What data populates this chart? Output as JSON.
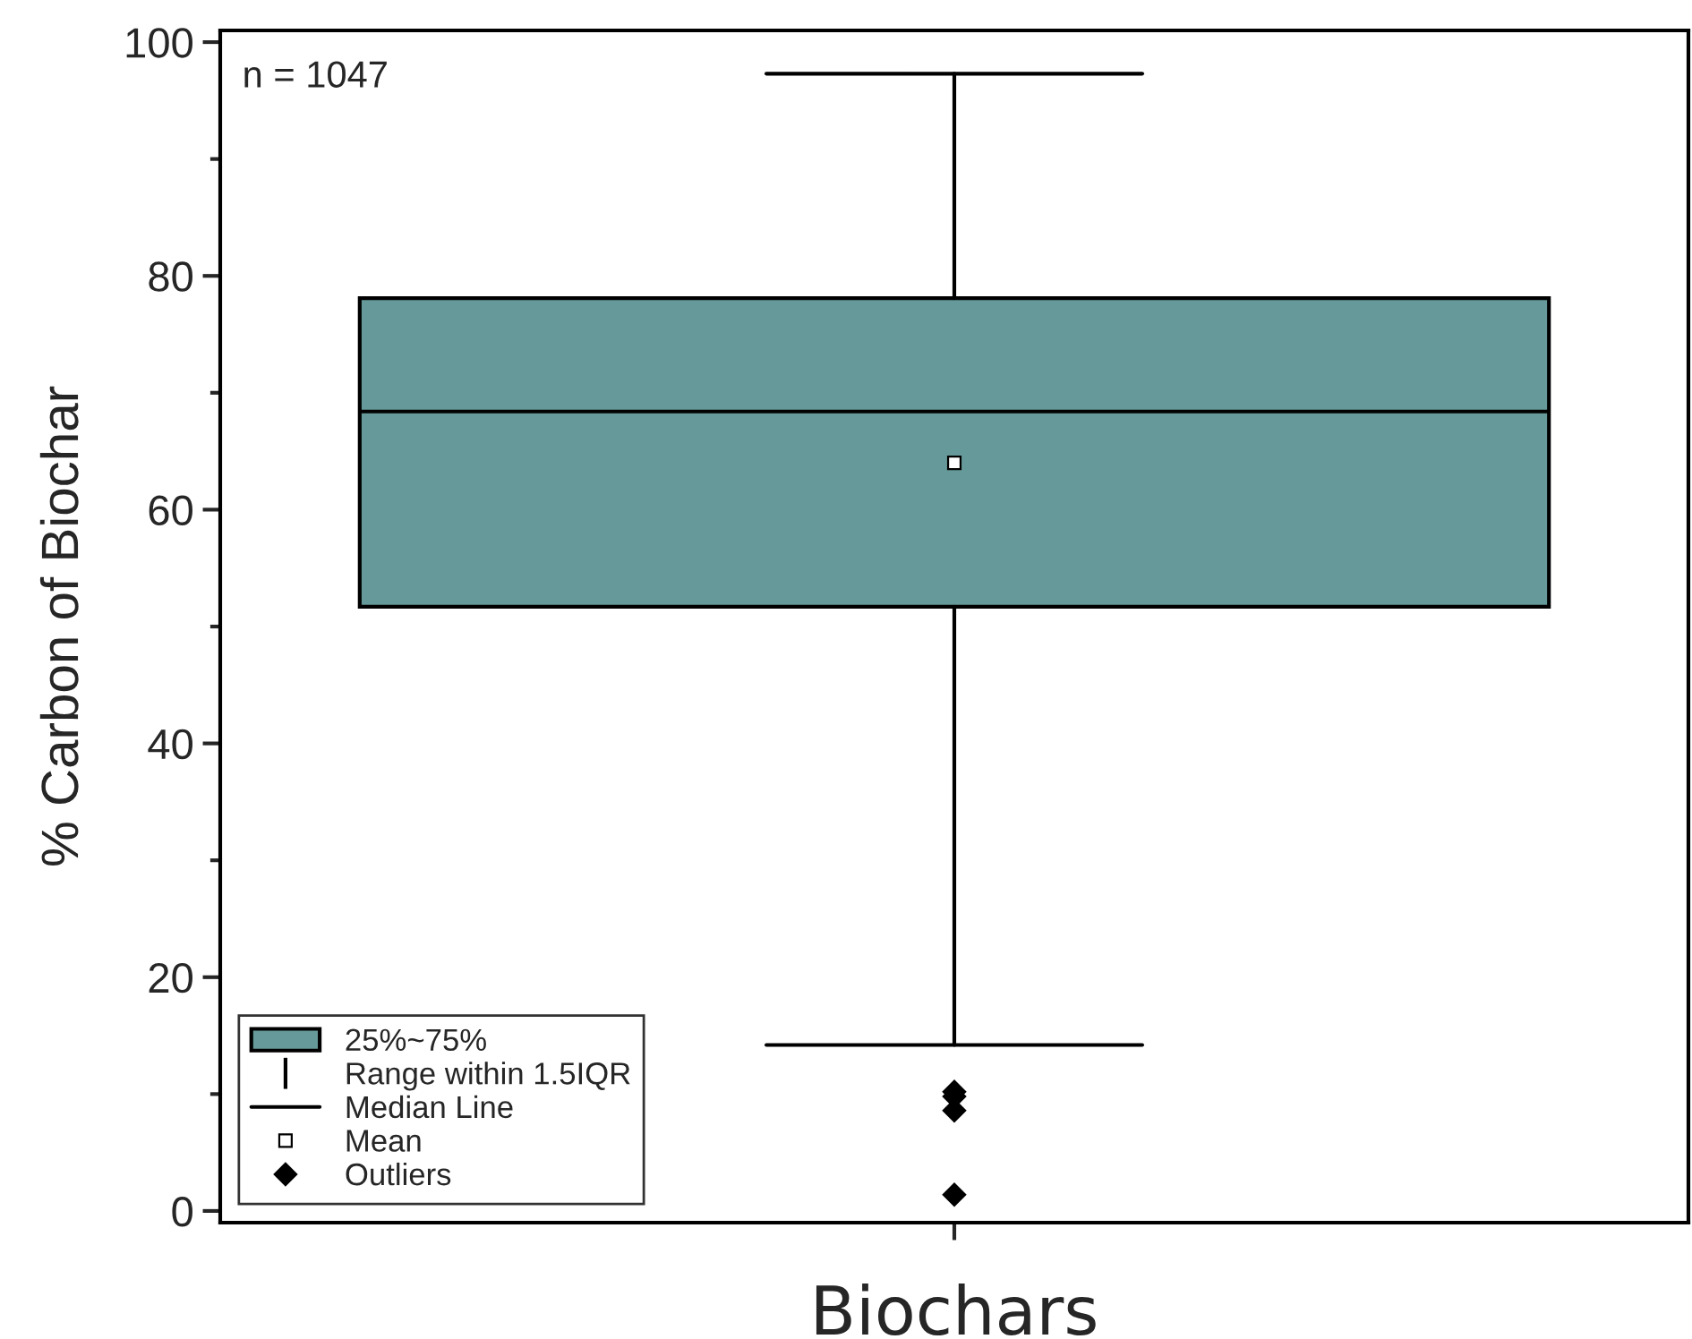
{
  "chart_data": {
    "type": "box",
    "xlabel": "Biochars",
    "ylabel": "% Carbon of Biochar",
    "categories": [
      null
    ],
    "color": "#669999",
    "boxes": [
      {
        "low": 14.2,
        "q1": 51.7,
        "median": 68.4,
        "q3": 78.1,
        "high": 97.3,
        "mean": 64.0,
        "outliers": [
          10.2,
          9.8,
          8.6,
          1.4
        ]
      }
    ],
    "ylim": [
      -1,
      101
    ],
    "yticks": [
      0,
      20,
      40,
      60,
      80,
      100
    ],
    "annotations": [
      "n = 1047",
      "25%~75%",
      "Range within 1.5IQR",
      "Median Line",
      "Mean",
      "Outliers"
    ],
    "grid": false
  }
}
